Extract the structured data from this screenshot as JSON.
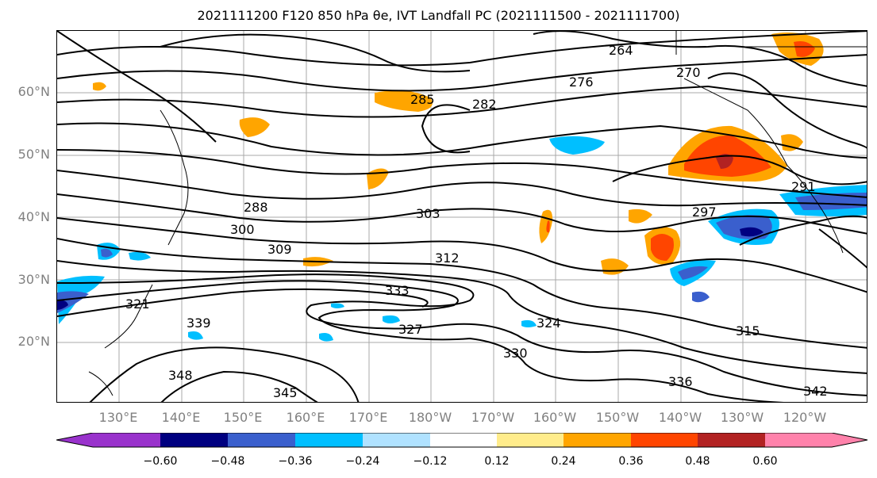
{
  "title": "2021111200 F120 850 hPa θe, IVT Landfall PC (2021111500 - 2021111700)",
  "lat_labels": [
    "60°N",
    "50°N",
    "40°N",
    "30°N",
    "20°N"
  ],
  "lon_labels": [
    "130°E",
    "140°E",
    "150°E",
    "160°E",
    "170°E",
    "180°W",
    "170°W",
    "160°W",
    "150°W",
    "140°W",
    "130°W",
    "120°W"
  ],
  "contour_labels": [
    "264",
    "270",
    "276",
    "282",
    "285",
    "288",
    "291",
    "297",
    "300",
    "303",
    "309",
    "312",
    "315",
    "321",
    "324",
    "327",
    "330",
    "333",
    "336",
    "339",
    "342",
    "345",
    "348"
  ],
  "colorbar": {
    "ticks": [
      "−0.60",
      "−0.48",
      "−0.36",
      "−0.24",
      "−0.12",
      "0.12",
      "0.24",
      "0.36",
      "0.48",
      "0.60"
    ],
    "colors": [
      "#9932CC",
      "#000080",
      "#3A5FCD",
      "#00BFFF",
      "#B0E2FF",
      "#FFFFFF",
      "#FFEC8B",
      "#FFA500",
      "#FF4500",
      "#B22222",
      "#FF82AB"
    ]
  }
}
